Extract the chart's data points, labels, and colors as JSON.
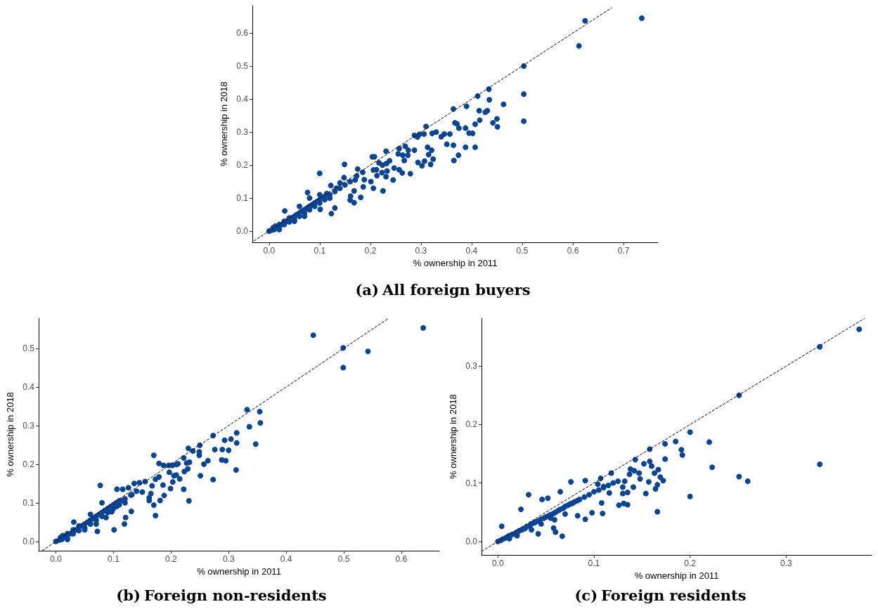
{
  "chart_data": [
    {
      "type": "scatter",
      "title": "(a) All foreign buyers",
      "xlabel": "% ownership in 2011",
      "ylabel": "% ownership in 2018",
      "xlim": [
        -0.033,
        0.768
      ],
      "ylim": [
        -0.034,
        0.683
      ],
      "grid": false,
      "xticks": [
        {
          "value": 0,
          "label": "0.0"
        },
        {
          "value": 0.1,
          "label": "0.1"
        },
        {
          "value": 0.2,
          "label": "0.2"
        },
        {
          "value": 0.3,
          "label": "0.3"
        },
        {
          "value": 0.4,
          "label": "0.4"
        },
        {
          "value": 0.5,
          "label": "0.5"
        },
        {
          "value": 0.6,
          "label": "0.6"
        },
        {
          "value": 0.7,
          "label": "0.7"
        }
      ],
      "yticks": [
        {
          "value": 0,
          "label": "0.0"
        },
        {
          "value": 0.1,
          "label": "0.1"
        },
        {
          "value": 0.2,
          "label": "0.2"
        },
        {
          "value": 0.3,
          "label": "0.3"
        },
        {
          "value": 0.4,
          "label": "0.4"
        },
        {
          "value": 0.5,
          "label": "0.5"
        },
        {
          "value": 0.6,
          "label": "0.6"
        }
      ],
      "series": [
        {
          "type": "scatter",
          "marker": "circle",
          "color": "#0a4595",
          "x": [
            0.736,
            0.624,
            0.612,
            0.503,
            0.503,
            0.503,
            0.434,
            0.412,
            0.435,
            0.463,
            0.364,
            0.39,
            0.415,
            0.431,
            0.427,
            0.45,
            0.416,
            0.407,
            0.442,
            0.451,
            0.367,
            0.371,
            0.375,
            0.388,
            0.395,
            0.402,
            0.31,
            0.33,
            0.322,
            0.306,
            0.297,
            0.287,
            0.293,
            0.34,
            0.346,
            0.357,
            0.351,
            0.364,
            0.388,
            0.407,
            0.374,
            0.365,
            0.313,
            0.321,
            0.315,
            0.324,
            0.294,
            0.307,
            0.302,
            0.319,
            0.269,
            0.257,
            0.275,
            0.287,
            0.255,
            0.264,
            0.274,
            0.267,
            0.231,
            0.238,
            0.232,
            0.247,
            0.257,
            0.263,
            0.279,
            0.204,
            0.208,
            0.217,
            0.224,
            0.212,
            0.206,
            0.233,
            0.223,
            0.213,
            0.231,
            0.245,
            0.201,
            0.206,
            0.225,
            0.149,
            0.1,
            0.175,
            0.185,
            0.173,
            0.188,
            0.186,
            0.168,
            0.181,
            0.161,
            0.168,
            0.16,
            0.076,
            0.123,
            0.148,
            0.14,
            0.133,
            0.122,
            0.114,
            0.13,
            0,
            0.005,
            0.008,
            0.01,
            0.012,
            0.02,
            0.02,
            0.025,
            0.03,
            0.03,
            0.035,
            0.04,
            0.04,
            0.045,
            0.05,
            0.05,
            0.055,
            0.06,
            0.06,
            0.065,
            0.07,
            0.07,
            0.075,
            0.08,
            0.08,
            0.085,
            0.09,
            0.09,
            0.095,
            0.1,
            0.1,
            0.105,
            0.11,
            0.11,
            0.12,
            0.12,
            0.13,
            0.14,
            0.15,
            0.16,
            0.17,
            0.031,
            0.06,
            0.08,
            0.1,
            0.02,
            0.05,
            0.07,
            0.101
          ],
          "values": [
            0.645,
            0.637,
            0.561,
            0.5,
            0.415,
            0.333,
            0.43,
            0.409,
            0.398,
            0.384,
            0.37,
            0.378,
            0.365,
            0.365,
            0.36,
            0.34,
            0.336,
            0.324,
            0.328,
            0.316,
            0.328,
            0.325,
            0.312,
            0.312,
            0.297,
            0.296,
            0.317,
            0.3,
            0.296,
            0.294,
            0.293,
            0.29,
            0.285,
            0.286,
            0.294,
            0.294,
            0.263,
            0.26,
            0.254,
            0.254,
            0.23,
            0.214,
            0.254,
            0.245,
            0.232,
            0.218,
            0.208,
            0.212,
            0.198,
            0.202,
            0.257,
            0.25,
            0.245,
            0.245,
            0.234,
            0.23,
            0.23,
            0.214,
            0.242,
            0.213,
            0.205,
            0.191,
            0.186,
            0.176,
            0.174,
            0.225,
            0.225,
            0.207,
            0.2,
            0.186,
            0.185,
            0.182,
            0.177,
            0.168,
            0.165,
            0.155,
            0.15,
            0.13,
            0.122,
            0.202,
            0.175,
            0.188,
            0.178,
            0.167,
            0.156,
            0.134,
            0.122,
            0.102,
            0.106,
            0.086,
            0.094,
            0.117,
            0.053,
            0.162,
            0.146,
            0.13,
            0.138,
            0.114,
            0.07,
            0,
            0.003,
            0.01,
            0.005,
            0.015,
            0.02,
            0.008,
            0.02,
            0.03,
            0.02,
            0.03,
            0.04,
            0.028,
            0.04,
            0.045,
            0.035,
            0.05,
            0.055,
            0.045,
            0.06,
            0.065,
            0.055,
            0.07,
            0.075,
            0.065,
            0.08,
            0.085,
            0.075,
            0.09,
            0.095,
            0.085,
            0.1,
            0.105,
            0.095,
            0.11,
            0.1,
            0.12,
            0.13,
            0.14,
            0.15,
            0.155,
            0.061,
            0.075,
            0.1,
            0.11,
            0.005,
            0.03,
            0.045,
            0.066
          ]
        },
        {
          "type": "line",
          "marker": "none",
          "line_style": "dashed",
          "color": "#000000",
          "x": [
            -0.03,
            0.677
          ],
          "values": [
            -0.03,
            0.677
          ]
        }
      ]
    },
    {
      "type": "scatter",
      "title": "(b) Foreign non-residents",
      "xlabel": "% ownership in 2011",
      "ylabel": "% ownership in 2018",
      "xlim": [
        -0.03,
        0.666
      ],
      "ylim": [
        -0.024,
        0.578
      ],
      "grid": false,
      "xticks": [
        {
          "value": 0,
          "label": "0.0"
        },
        {
          "value": 0.1,
          "label": "0.1"
        },
        {
          "value": 0.2,
          "label": "0.2"
        },
        {
          "value": 0.3,
          "label": "0.3"
        },
        {
          "value": 0.4,
          "label": "0.4"
        },
        {
          "value": 0.5,
          "label": "0.5"
        },
        {
          "value": 0.6,
          "label": "0.6"
        }
      ],
      "yticks": [
        {
          "value": 0,
          "label": "0.0"
        },
        {
          "value": 0.1,
          "label": "0.1"
        },
        {
          "value": 0.2,
          "label": "0.2"
        },
        {
          "value": 0.3,
          "label": "0.3"
        },
        {
          "value": 0.4,
          "label": "0.4"
        },
        {
          "value": 0.5,
          "label": "0.5"
        }
      ],
      "series": [
        {
          "type": "scatter",
          "marker": "circle",
          "color": "#0a4595",
          "x": [
            0.638,
            0.447,
            0.499,
            0.499,
            0.542,
            0.332,
            0.354,
            0.355,
            0.336,
            0.347,
            0.314,
            0.314,
            0.273,
            0.293,
            0.304,
            0.276,
            0.289,
            0.3,
            0.288,
            0.295,
            0.313,
            0.273,
            0.25,
            0.249,
            0.249,
            0.238,
            0.23,
            0.257,
            0.264,
            0.251,
            0.231,
            0.222,
            0.232,
            0.227,
            0.229,
            0.223,
            0.222,
            0.215,
            0.17,
            0.179,
            0.187,
            0.196,
            0.202,
            0.209,
            0.212,
            0.197,
            0.205,
            0.209,
            0.203,
            0.199,
            0.188,
            0.181,
            0.17,
            0.173,
            0.179,
            0.173,
            0.186,
            0.167,
            0.165,
            0.162,
            0.162,
            0.077,
            0.15,
            0.145,
            0.155,
            0.136,
            0.131,
            0.119,
            0.121,
            0.101,
            0.132,
            0.126,
            0.116,
            0.106,
            0.116,
            0.106,
            0.097,
            0.087,
            0.072,
            0,
            0.005,
            0.008,
            0.01,
            0.012,
            0.015,
            0.02,
            0.02,
            0.025,
            0.03,
            0.03,
            0.035,
            0.04,
            0.04,
            0.045,
            0.05,
            0.05,
            0.055,
            0.06,
            0.06,
            0.065,
            0.07,
            0.07,
            0.075,
            0.08,
            0.08,
            0.085,
            0.09,
            0.09,
            0.095,
            0.1,
            0.1,
            0.105,
            0.11,
            0.11,
            0.12,
            0.12,
            0.13,
            0.14,
            0.031,
            0.06,
            0.08,
            0.02,
            0.05,
            0.07
          ],
          "values": [
            0.553,
            0.534,
            0.501,
            0.45,
            0.492,
            0.341,
            0.336,
            0.307,
            0.297,
            0.252,
            0.281,
            0.255,
            0.274,
            0.262,
            0.265,
            0.238,
            0.238,
            0.236,
            0.211,
            0.209,
            0.185,
            0.16,
            0.249,
            0.232,
            0.223,
            0.234,
            0.241,
            0.2,
            0.209,
            0.17,
            0.105,
            0.216,
            0.205,
            0.203,
            0.188,
            0.181,
            0.135,
            0.162,
            0.223,
            0.202,
            0.197,
            0.197,
            0.197,
            0.199,
            0.201,
            0.179,
            0.17,
            0.172,
            0.154,
            0.137,
            0.119,
            0.106,
            0.094,
            0.067,
            0.167,
            0.161,
            0.146,
            0.144,
            0.124,
            0.113,
            0.106,
            0.145,
            0.128,
            0.152,
            0.155,
            0.15,
            0.078,
            0.045,
            0.062,
            0.03,
            0.121,
            0.139,
            0.135,
            0.135,
            0.106,
            0.091,
            0.077,
            0.062,
            0.026,
            0,
            0.003,
            0.01,
            0.005,
            0.015,
            0.01,
            0.02,
            0.008,
            0.02,
            0.03,
            0.02,
            0.03,
            0.04,
            0.028,
            0.04,
            0.045,
            0.035,
            0.05,
            0.055,
            0.045,
            0.06,
            0.065,
            0.055,
            0.07,
            0.075,
            0.065,
            0.08,
            0.085,
            0.075,
            0.09,
            0.095,
            0.085,
            0.1,
            0.105,
            0.095,
            0.11,
            0.1,
            0.12,
            0.13,
            0.05,
            0.07,
            0.1,
            0.005,
            0.03,
            0.045
          ]
        },
        {
          "type": "line",
          "marker": "none",
          "line_style": "dashed",
          "color": "#000000",
          "x": [
            -0.024,
            0.578
          ],
          "values": [
            -0.024,
            0.578
          ]
        }
      ]
    },
    {
      "type": "scatter",
      "title": "(c) Foreign residents",
      "xlabel": "% ownership in 2011",
      "ylabel": "% ownership in 2018",
      "xlim": [
        -0.017,
        0.389
      ],
      "ylim": [
        -0.023,
        0.382
      ],
      "grid": false,
      "xticks": [
        {
          "value": 0,
          "label": "0.0"
        },
        {
          "value": 0.1,
          "label": "0.1"
        },
        {
          "value": 0.2,
          "label": "0.2"
        },
        {
          "value": 0.3,
          "label": "0.3"
        }
      ],
      "yticks": [
        {
          "value": 0,
          "label": "0.0"
        },
        {
          "value": 0.1,
          "label": "0.1"
        },
        {
          "value": 0.2,
          "label": "0.2"
        },
        {
          "value": 0.3,
          "label": "0.3"
        }
      ],
      "series": [
        {
          "type": "scatter",
          "marker": "circle",
          "color": "#0a4595",
          "x": [
            0.376,
            0.335,
            0.251,
            0.335,
            0.251,
            0.26,
            0.223,
            0.22,
            0.2,
            0.2,
            0.185,
            0.191,
            0.192,
            0.174,
            0.174,
            0.158,
            0.158,
            0.16,
            0.152,
            0.167,
            0.163,
            0.169,
            0.172,
            0.166,
            0.164,
            0.157,
            0.154,
            0.166,
            0.143,
            0.138,
            0.142,
            0.147,
            0.148,
            0.137,
            0.141,
            0.118,
            0.125,
            0.132,
            0.13,
            0.135,
            0.126,
            0.131,
            0.135,
            0.13,
            0.116,
            0.11,
            0.107,
            0.104,
            0.108,
            0.109,
            0.098,
            0.091,
            0.083,
            0.076,
            0.091,
            0.032,
            0.024,
            0.067,
            0.06,
            0.058,
            0.042,
            0.004,
            0.065,
            0.046,
            0.052,
            0.077,
            0.07,
            0.059,
            0,
            0.003,
            0.005,
            0.008,
            0.01,
            0.012,
            0.015,
            0.018,
            0.02,
            0.022,
            0.025,
            0.028,
            0.03,
            0.033,
            0.035,
            0.038,
            0.04,
            0.043,
            0.045,
            0.048,
            0.05,
            0.053,
            0.055,
            0.058,
            0.06,
            0.063,
            0.065,
            0.068,
            0.07,
            0.073,
            0.075,
            0.078,
            0.08,
            0.083,
            0.085,
            0.09,
            0.095,
            0.1,
            0.105,
            0.11,
            0.115,
            0.12,
            0.012,
            0.02,
            0.035,
            0.045,
            0.055
          ],
          "values": [
            0.363,
            0.333,
            0.25,
            0.132,
            0.111,
            0.103,
            0.127,
            0.17,
            0.187,
            0.077,
            0.171,
            0.157,
            0.148,
            0.167,
            0.141,
            0.158,
            0.137,
            0.129,
            0.133,
            0.123,
            0.117,
            0.11,
            0.104,
            0.097,
            0.09,
            0.102,
            0.082,
            0.051,
            0.14,
            0.124,
            0.121,
            0.117,
            0.107,
            0.115,
            0.093,
            0.117,
            0.103,
            0.103,
            0.093,
            0.084,
            0.062,
            0.065,
            0.063,
            0.082,
            0.083,
            0.094,
            0.108,
            0.098,
            0.066,
            0.048,
            0.049,
            0.038,
            0.044,
            0.102,
            0.104,
            0.08,
            0.055,
            0.009,
            0.016,
            0.023,
            0.013,
            0.026,
            0.085,
            0.072,
            0.074,
            0.065,
            0.047,
            0.037,
            0,
            0.002,
            0.004,
            0.006,
            0.008,
            0.01,
            0.012,
            0.014,
            0.016,
            0.018,
            0.02,
            0.022,
            0.025,
            0.027,
            0.03,
            0.032,
            0.034,
            0.036,
            0.038,
            0.04,
            0.042,
            0.044,
            0.046,
            0.048,
            0.05,
            0.053,
            0.055,
            0.057,
            0.06,
            0.062,
            0.064,
            0.066,
            0.068,
            0.07,
            0.072,
            0.076,
            0.08,
            0.085,
            0.088,
            0.092,
            0.096,
            0.1,
            0.005,
            0.01,
            0.02,
            0.03,
            0.04
          ]
        },
        {
          "type": "line",
          "marker": "none",
          "line_style": "dashed",
          "color": "#000000",
          "x": [
            -0.017,
            0.382
          ],
          "values": [
            -0.017,
            0.382
          ]
        }
      ]
    }
  ]
}
